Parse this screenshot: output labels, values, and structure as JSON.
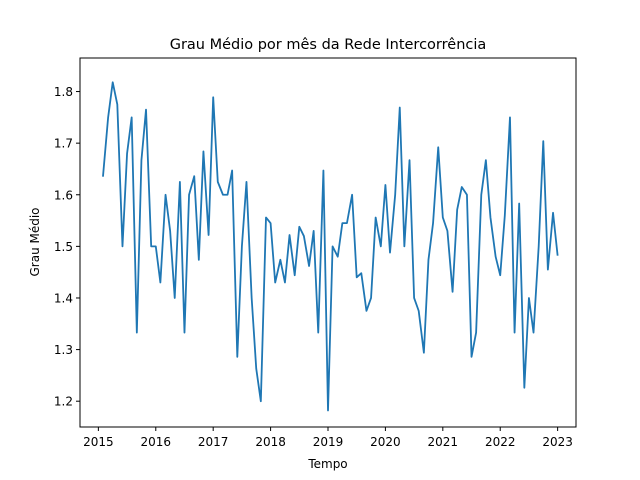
{
  "chart_data": {
    "type": "line",
    "title": "Grau Médio por mês da Rede Intercorrência",
    "xlabel": "Tempo",
    "ylabel": "Grau Médio",
    "xlim": [
      2014.68,
      2023.32
    ],
    "ylim": [
      1.15,
      1.865
    ],
    "xticks": [
      2015,
      2016,
      2017,
      2018,
      2019,
      2020,
      2021,
      2022,
      2023
    ],
    "xtick_labels": [
      "2015",
      "2016",
      "2017",
      "2018",
      "2019",
      "2020",
      "2021",
      "2022",
      "2023"
    ],
    "yticks": [
      1.2,
      1.3,
      1.4,
      1.5,
      1.6,
      1.7,
      1.8
    ],
    "ytick_labels": [
      "1.2",
      "1.3",
      "1.4",
      "1.5",
      "1.6",
      "1.7",
      "1.8"
    ],
    "grid": false,
    "line_color": "#1f77b4",
    "series": [
      {
        "x": [
          2015.08,
          2015.17,
          2015.25,
          2015.33,
          2015.42,
          2015.5,
          2015.58,
          2015.67,
          2015.75,
          2015.83,
          2015.92,
          2016.0,
          2016.08,
          2016.17,
          2016.25,
          2016.33,
          2016.42,
          2016.5,
          2016.58,
          2016.67,
          2016.75,
          2016.83,
          2016.92,
          2017.0,
          2017.08,
          2017.17,
          2017.25,
          2017.33,
          2017.42,
          2017.5,
          2017.58,
          2017.67,
          2017.75,
          2017.83,
          2017.92,
          2018.0,
          2018.08,
          2018.17,
          2018.25,
          2018.33,
          2018.42,
          2018.5,
          2018.58,
          2018.67,
          2018.75,
          2018.83,
          2018.92,
          2019.0,
          2019.08,
          2019.17,
          2019.25,
          2019.33,
          2019.42,
          2019.5,
          2019.58,
          2019.67,
          2019.75,
          2019.83,
          2019.92,
          2020.0,
          2020.08,
          2020.17,
          2020.25,
          2020.33,
          2020.42,
          2020.5,
          2020.58,
          2020.67,
          2020.75,
          2020.83,
          2020.92,
          2021.0,
          2021.08,
          2021.17,
          2021.25,
          2021.33,
          2021.42,
          2021.5,
          2021.58,
          2021.67,
          2021.75,
          2021.83,
          2021.92,
          2022.0,
          2022.08,
          2022.17,
          2022.25,
          2022.33,
          2022.42,
          2022.5,
          2022.58,
          2022.67,
          2022.75,
          2022.83,
          2022.92,
          2023.0
        ],
        "values": [
          1.635,
          1.75,
          1.818,
          1.775,
          1.5,
          1.68,
          1.75,
          1.333,
          1.667,
          1.765,
          1.5,
          1.5,
          1.43,
          1.6,
          1.53,
          1.4,
          1.625,
          1.333,
          1.6,
          1.636,
          1.474,
          1.684,
          1.522,
          1.789,
          1.625,
          1.6,
          1.6,
          1.647,
          1.286,
          1.5,
          1.625,
          1.4,
          1.263,
          1.2,
          1.556,
          1.545,
          1.43,
          1.474,
          1.43,
          1.522,
          1.444,
          1.538,
          1.52,
          1.462,
          1.53,
          1.333,
          1.647,
          1.182,
          1.5,
          1.48,
          1.545,
          1.545,
          1.6,
          1.44,
          1.448,
          1.375,
          1.4,
          1.556,
          1.5,
          1.619,
          1.488,
          1.6,
          1.769,
          1.5,
          1.667,
          1.4,
          1.375,
          1.294,
          1.474,
          1.545,
          1.692,
          1.556,
          1.53,
          1.412,
          1.571,
          1.615,
          1.6,
          1.286,
          1.333,
          1.6,
          1.667,
          1.556,
          1.48,
          1.444,
          1.56,
          1.75,
          1.333,
          1.583,
          1.226,
          1.4,
          1.333,
          1.5,
          1.704,
          1.455,
          1.565,
          1.482
        ]
      }
    ]
  }
}
